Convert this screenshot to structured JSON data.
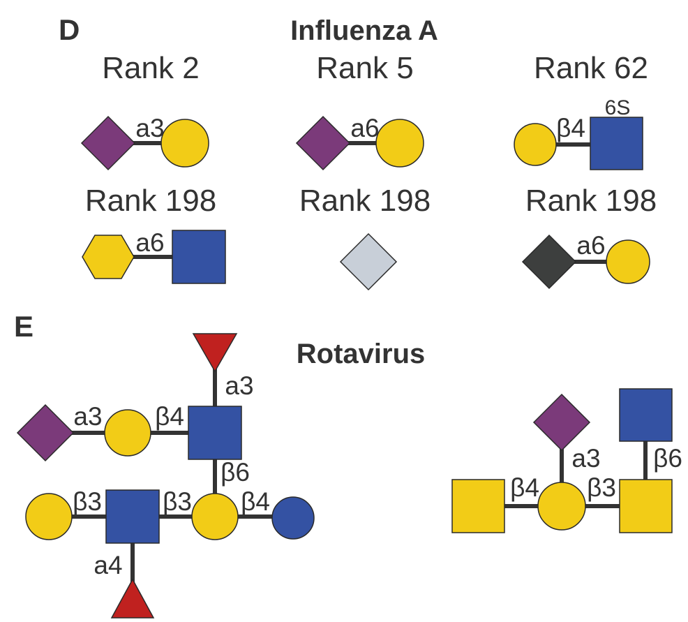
{
  "colors": {
    "sialic_acid": "#7b3a7a",
    "galactose": "#f2cc17",
    "glcnac": "#3452a3",
    "fucose": "#c0211f",
    "light_grey": "#c8cfd8",
    "dark_grey": "#3d3f3e",
    "linkage": "#333333"
  },
  "panel_d": {
    "letter": "D",
    "title": "Influenza A",
    "glycans": [
      {
        "rank": "Rank 2",
        "linkage": "a3"
      },
      {
        "rank": "Rank 5",
        "linkage": "a6"
      },
      {
        "rank": "Rank 62",
        "linkage": "β4",
        "modification": "6S"
      },
      {
        "rank": "Rank 198",
        "linkage": "a6"
      },
      {
        "rank": "Rank 198"
      },
      {
        "rank": "Rank 198",
        "linkage": "a6"
      }
    ]
  },
  "panel_e": {
    "letter": "E",
    "title": "Rotavirus",
    "left_glycan": {
      "top_fucose": "a3",
      "sialic_galactose": "a3",
      "galactose_glcnac": "β4",
      "branch": "β6",
      "bottom_galactose": "β3",
      "glcnac_galactose": "β3",
      "galactose_circle": "β4",
      "bottom_fucose": "a4"
    },
    "right_glycan": {
      "sialic_galactose": "a3",
      "glcnac_branch": "β6",
      "left_square": "β4",
      "right_square": "β3"
    }
  }
}
